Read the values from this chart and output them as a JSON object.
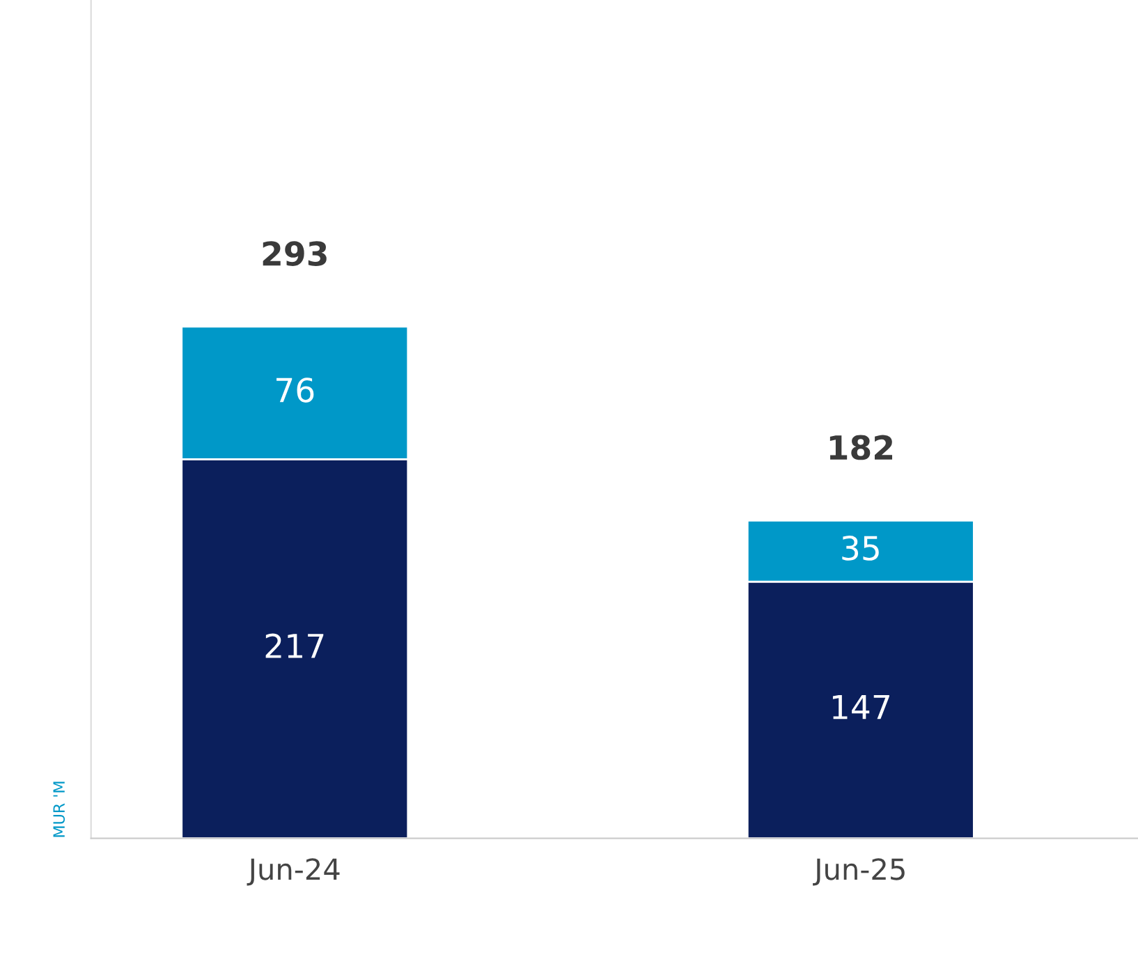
{
  "chart_data": {
    "type": "bar",
    "stacked": true,
    "ylabel": "MUR 'M",
    "categories": [
      "Jun-24",
      "Jun-25"
    ],
    "series": [
      {
        "color": "#0b1f5c",
        "values": [
          217,
          147
        ]
      },
      {
        "color": "#0098c8",
        "values": [
          76,
          35
        ]
      }
    ],
    "ylim": [
      0,
      480
    ],
    "tick_labels": "x",
    "data_labels": true,
    "totals": [
      "293",
      "182"
    ],
    "grid": false,
    "legend": false
  }
}
